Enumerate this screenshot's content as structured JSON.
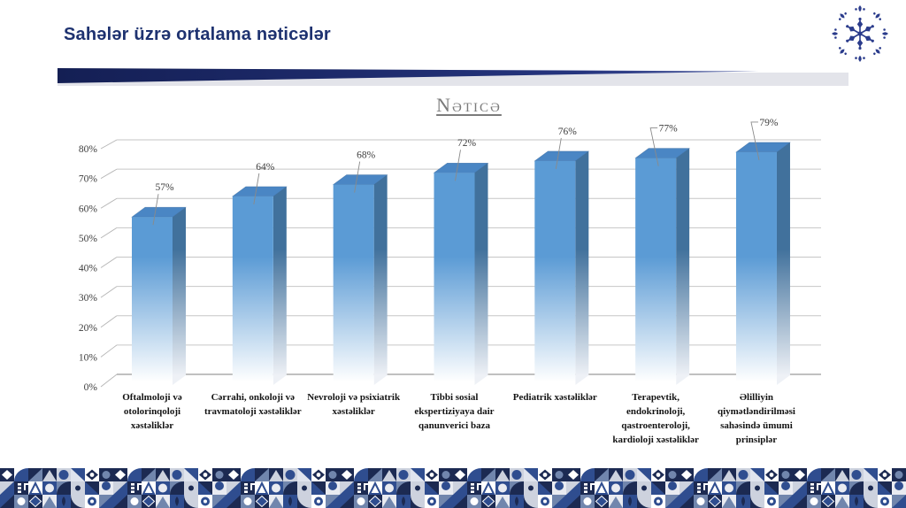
{
  "slide": {
    "title": "Sahələr üzrə ortalama nəticələr",
    "accent_navy": "#1e3270",
    "divider_navy": "#1c296b",
    "divider_gray": "#e3e4ea"
  },
  "logo": {
    "name": "ornamental-snowflake-medallion",
    "color": "#2b3c8c"
  },
  "chart_data": {
    "type": "bar",
    "style": "3d-column",
    "title": "Nəticə",
    "xlabel": "",
    "ylabel": "",
    "ylim": [
      0,
      80
    ],
    "grid": true,
    "legend": "none",
    "yticks": [
      "0%",
      "10%",
      "20%",
      "30%",
      "40%",
      "50%",
      "60%",
      "70%",
      "80%"
    ],
    "categories": [
      {
        "label": "Oftalmoloji və otolorinqoloji xəstəliklər",
        "lines": [
          "Oftalmoloji və",
          "otolorinqoloji",
          "xəstəliklər"
        ]
      },
      {
        "label": "Cərrahi, onkoloji və travmatoloji xəstəliklər",
        "lines": [
          "Cərrahi, onkoloji və",
          "travmatoloji xəstəliklər"
        ]
      },
      {
        "label": "Nevroloji və psixiatrik xəstəliklər",
        "lines": [
          "Nevroloji və psixiatrik",
          "xəstəliklər"
        ]
      },
      {
        "label": "Tibbi sosial ekspertiziyaya dair qanunverici baza",
        "lines": [
          "Tibbi sosial",
          "ekspertiziyaya dair",
          "qanunverici baza"
        ]
      },
      {
        "label": "Pediatrik xəstəliklər",
        "lines": [
          "Pediatrik xəstəliklər"
        ]
      },
      {
        "label": "Terapevtik, endokrinoloji, qastroenteroloji, kardioloji xəstəliklər",
        "lines": [
          "Terapevtik,",
          "endokrinoloji,",
          "qastroenteroloji,",
          "kardioloji xəstəliklər"
        ]
      },
      {
        "label": "Əlilliyin qiymətləndirilməsi sahəsində ümumi prinsiplər",
        "lines": [
          "Əlilliyin",
          "qiymətləndirilməsi",
          "sahəsində ümumi",
          "prinsiplər"
        ]
      }
    ],
    "values": [
      57,
      64,
      68,
      72,
      76,
      77,
      79
    ],
    "value_labels": [
      "57%",
      "64%",
      "68%",
      "72%",
      "76%",
      "77%",
      "79%"
    ],
    "bar_front_color": "#5b9bd5",
    "bar_side_color": "#41719c",
    "bar_top_color": "#4a86c4",
    "gridline_color": "#c6c6c6",
    "baseline_color": "#9a9a9a"
  },
  "footer": {
    "name": "mosaic-pattern-band",
    "colors": [
      "#1c2a52",
      "#2f4d8f",
      "#7186ad",
      "#cdd2de",
      "#e9ebf1",
      "#ffffff"
    ]
  }
}
